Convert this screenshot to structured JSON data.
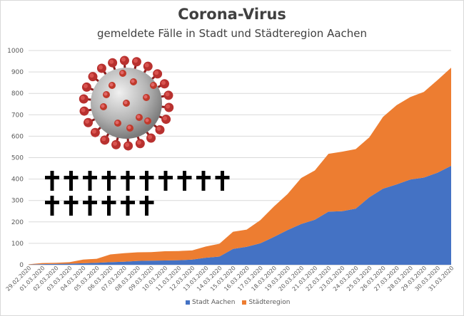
{
  "title": "Corona-Virus",
  "subtitle": "gemeldete Fälle in Stadt und Städteregion Aachen",
  "icons": {
    "virus": "coronavirus-illustration",
    "crosses": "cross-icon"
  },
  "deaths_count": 16,
  "chart_data": {
    "type": "area",
    "stacked": true,
    "categories": [
      "29.02.2020",
      "01.03.2020",
      "02.03.2020",
      "03.03.2020",
      "04.03.2020",
      "05.03.2020",
      "06.03.2020",
      "07.03.2020",
      "08.03.2020",
      "09.03.2020",
      "10.03.2020",
      "11.03.2020",
      "12.03.2020",
      "13.03.2020",
      "14.03.2020",
      "15.03.2020",
      "16.03.2020",
      "17.03.2020",
      "18.03.2020",
      "19.03.2020",
      "20.03.2020",
      "21.03.2020",
      "22.03.2020",
      "23.03.2020",
      "24.03.2020",
      "25.03.2020",
      "26.03.2020",
      "27.03.2020",
      "28.03.2020",
      "29.03.2020",
      "30.03.2020",
      "31.03.2020"
    ],
    "series": [
      {
        "name": "Stadt Aachen",
        "color": "#4472c4",
        "values": [
          1,
          3,
          4,
          5,
          7,
          9,
          12,
          14,
          18,
          19,
          20,
          21,
          24,
          33,
          38,
          74,
          84,
          100,
          130,
          162,
          190,
          210,
          248,
          250,
          262,
          315,
          355,
          375,
          398,
          407,
          430,
          462
        ]
      },
      {
        "name": "Städteregion",
        "color": "#ed7d31",
        "values": [
          1,
          5,
          5,
          7,
          17,
          19,
          36,
          40,
          40,
          40,
          43,
          43,
          43,
          52,
          60,
          80,
          80,
          108,
          142,
          168,
          215,
          230,
          270,
          278,
          278,
          280,
          335,
          370,
          385,
          400,
          432,
          458
        ]
      }
    ],
    "ylim": [
      0,
      1000
    ],
    "yticks": [
      0,
      100,
      200,
      300,
      400,
      500,
      600,
      700,
      800,
      900,
      1000
    ],
    "grid": true,
    "legend_position": "bottom"
  }
}
